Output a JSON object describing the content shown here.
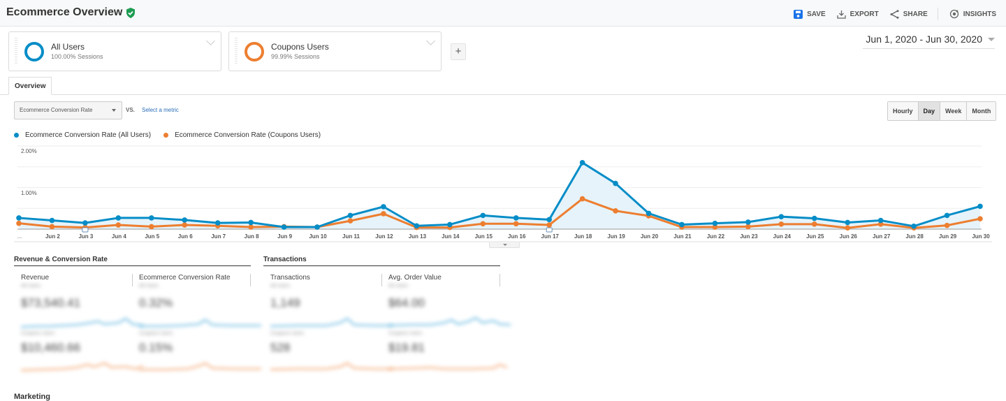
{
  "header": {
    "title": "Ecommerce Overview",
    "verified_icon": "shield-check-icon",
    "actions": [
      {
        "label": "SAVE",
        "icon": "save-icon"
      },
      {
        "label": "EXPORT",
        "icon": "export-icon"
      },
      {
        "label": "SHARE",
        "icon": "share-icon"
      },
      {
        "label": "INSIGHTS",
        "icon": "insights-icon"
      }
    ]
  },
  "segments": [
    {
      "name": "All Users",
      "sub": "100.00% Sessions",
      "color": "#058dc7"
    },
    {
      "name": "Coupons Users",
      "sub": "99.99% Sessions",
      "color": "#ed7e30"
    }
  ],
  "add_segment_label": "+",
  "date_range": "Jun 1, 2020 - Jun 30, 2020",
  "tabs": [
    {
      "label": "Overview",
      "active": true
    }
  ],
  "metric_selector": {
    "selected": "Ecommerce Conversion Rate",
    "vs_label": "VS.",
    "secondary_placeholder": "Select a metric"
  },
  "granularity": {
    "options": [
      "Hourly",
      "Day",
      "Week",
      "Month"
    ],
    "selected": "Day"
  },
  "chart_data": {
    "type": "line",
    "title": "",
    "xlabel": "",
    "ylabel": "Ecommerce Conversion Rate",
    "ylim": [
      0,
      2.0
    ],
    "y_ticks": [
      "1.00%",
      "2.00%"
    ],
    "grid": true,
    "legend_position": "top-left",
    "categories": [
      "...",
      "Jun 2",
      "Jun 3",
      "Jun 4",
      "Jun 5",
      "Jun 6",
      "Jun 7",
      "Jun 8",
      "Jun 9",
      "Jun 10",
      "Jun 11",
      "Jun 12",
      "Jun 13",
      "Jun 14",
      "Jun 15",
      "Jun 16",
      "Jun 17",
      "Jun 18",
      "Jun 19",
      "Jun 20",
      "Jun 21",
      "Jun 22",
      "Jun 23",
      "Jun 24",
      "Jun 25",
      "Jun 26",
      "Jun 27",
      "Jun 28",
      "Jun 29",
      "Jun 30"
    ],
    "series": [
      {
        "name": "Ecommerce Conversion Rate (All Users)",
        "color": "#058dc7",
        "values": [
          0.27,
          0.21,
          0.15,
          0.27,
          0.27,
          0.22,
          0.15,
          0.16,
          0.05,
          0.05,
          0.33,
          0.54,
          0.08,
          0.11,
          0.33,
          0.27,
          0.23,
          1.6,
          1.1,
          0.38,
          0.11,
          0.14,
          0.17,
          0.3,
          0.26,
          0.16,
          0.21,
          0.07,
          0.33,
          0.55
        ]
      },
      {
        "name": "Ecommerce Conversion Rate (Coupons Users)",
        "color": "#ed7e30",
        "values": [
          0.14,
          0.06,
          0.04,
          0.1,
          0.06,
          0.1,
          0.08,
          0.05,
          0.06,
          0.05,
          0.2,
          0.37,
          0.04,
          0.04,
          0.13,
          0.13,
          0.1,
          0.73,
          0.44,
          0.32,
          0.05,
          0.05,
          0.06,
          0.12,
          0.12,
          0.03,
          0.12,
          0.03,
          0.09,
          0.25
        ]
      }
    ],
    "annotations": [
      "Jun 3",
      "Jun 17"
    ]
  },
  "scorecards": {
    "groups": [
      {
        "title": "Revenue & Conversion Rate",
        "cards": [
          {
            "label": "Revenue",
            "seg1": "All Users",
            "val1": "$73,540.41",
            "seg2": "Coupons Users",
            "val2": "$10,460.66"
          },
          {
            "label": "Ecommerce Conversion Rate",
            "seg1": "All Users",
            "val1": "0.32%",
            "seg2": "Coupons Users",
            "val2": "0.15%"
          }
        ]
      },
      {
        "title": "Transactions",
        "cards": [
          {
            "label": "Transactions",
            "seg1": "All Users",
            "val1": "1,149",
            "seg2": "Coupons Users",
            "val2": "528"
          },
          {
            "label": "Avg. Order Value",
            "seg1": "All Users",
            "val1": "$64.00",
            "seg2": "Coupons Users",
            "val2": "$19.81"
          }
        ]
      }
    ]
  },
  "bottom_section_title": "Marketing"
}
